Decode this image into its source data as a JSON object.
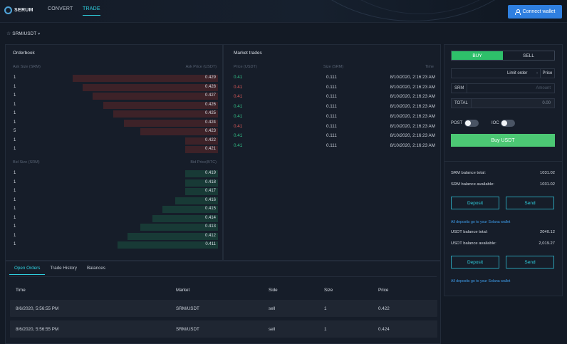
{
  "header": {
    "logo_text": "SERUM",
    "nav": {
      "convert": "CONVERT",
      "trade": "TRADE"
    },
    "connect_wallet": "Connect wallet"
  },
  "market": {
    "name": "SRM/USDT"
  },
  "orderbook": {
    "title": "Orderbook",
    "ask_size_header": "Ask Size (SRM)",
    "ask_price_header": "Ask Price (USDT)",
    "asks": [
      {
        "size": "1",
        "price": "0.429",
        "depth": 0.71
      },
      {
        "size": "1",
        "price": "0.428",
        "depth": 0.66
      },
      {
        "size": "1",
        "price": "0.427",
        "depth": 0.61
      },
      {
        "size": "1",
        "price": "0.426",
        "depth": 0.56
      },
      {
        "size": "1",
        "price": "0.425",
        "depth": 0.51
      },
      {
        "size": "1",
        "price": "0.424",
        "depth": 0.46
      },
      {
        "size": "5",
        "price": "0.423",
        "depth": 0.38
      },
      {
        "size": "1",
        "price": "0.422",
        "depth": 0.16
      },
      {
        "size": "1",
        "price": "0.421",
        "depth": 0.16
      }
    ],
    "bid_size_header": "Bid Size (SRM)",
    "bid_price_header": "Bid Price(BTC)",
    "bids": [
      {
        "size": "1",
        "price": "0.419",
        "depth": 0.16
      },
      {
        "size": "1",
        "price": "0.418",
        "depth": 0.16
      },
      {
        "size": "1",
        "price": "0.417",
        "depth": 0.16
      },
      {
        "size": "1",
        "price": "0.416",
        "depth": 0.21
      },
      {
        "size": "1",
        "price": "0.415",
        "depth": 0.27
      },
      {
        "size": "1",
        "price": "0.414",
        "depth": 0.32
      },
      {
        "size": "1",
        "price": "0.413",
        "depth": 0.38
      },
      {
        "size": "1",
        "price": "0.412",
        "depth": 0.44
      },
      {
        "size": "1",
        "price": "0.411",
        "depth": 0.49
      }
    ]
  },
  "trades": {
    "title": "Market trades",
    "price_header": "Price (USDT)",
    "size_header": "Size (SRM)",
    "time_header": "Time",
    "rows": [
      {
        "price": "0.41",
        "dir": "up",
        "size": "0.111",
        "time": "8/10/2020, 2:16:23 AM"
      },
      {
        "price": "0.41",
        "dir": "down",
        "size": "0.111",
        "time": "8/10/2020, 2:16:23 AM"
      },
      {
        "price": "0.41",
        "dir": "down",
        "size": "0.111",
        "time": "8/10/2020, 2:16:23 AM"
      },
      {
        "price": "0.41",
        "dir": "up",
        "size": "0.111",
        "time": "8/10/2020, 2:16:23 AM"
      },
      {
        "price": "0.41",
        "dir": "up",
        "size": "0.111",
        "time": "8/10/2020, 2:16:23 AM"
      },
      {
        "price": "0.41",
        "dir": "down",
        "size": "0.111",
        "time": "8/10/2020, 2:16:23 AM"
      },
      {
        "price": "0.41",
        "dir": "up",
        "size": "0.111",
        "time": "8/10/2020, 2:16:23 AM"
      },
      {
        "price": "0.41",
        "dir": "up",
        "size": "0.111",
        "time": "8/10/2020, 2:16:23 AM"
      }
    ]
  },
  "orders": {
    "tabs": [
      "Open Orders",
      "Trade History",
      "Balances"
    ],
    "headers": {
      "time": "Time",
      "market": "Market",
      "side": "Side",
      "size": "Size",
      "price": "Price"
    },
    "rows": [
      {
        "time": "8/6/2020, 5:56:55 PM",
        "market": "SRM/USDT",
        "side": "sell",
        "size": "1",
        "price": "0.422"
      },
      {
        "time": "8/6/2020, 5:56:55 PM",
        "market": "SRM/USDT",
        "side": "sell",
        "size": "1",
        "price": "0.424"
      }
    ]
  },
  "trade_form": {
    "buy_tab": "BUY",
    "sell_tab": "SELL",
    "order_type": "Limit order",
    "price_label": "Price",
    "amount_label": "SRM",
    "amount_placeholder": "Amount",
    "total_label": "TOTAL",
    "total_value": "0.00",
    "post_label": "POST",
    "ioc_label": "IOC",
    "submit": "Buy USDT"
  },
  "balances": {
    "srm_total_label": "SRM balance total:",
    "srm_total": "1031.02",
    "srm_available_label": "SRM balance available:",
    "srm_available": "1031.02",
    "deposit": "Deposit",
    "send": "Send",
    "note": "All deposits go to your Solana wallet",
    "usdt_total_label": "USDT balance total:",
    "usdt_total": "2040.12",
    "usdt_available_label": "USDT balance available:",
    "usdt_available": "2,019.27"
  }
}
